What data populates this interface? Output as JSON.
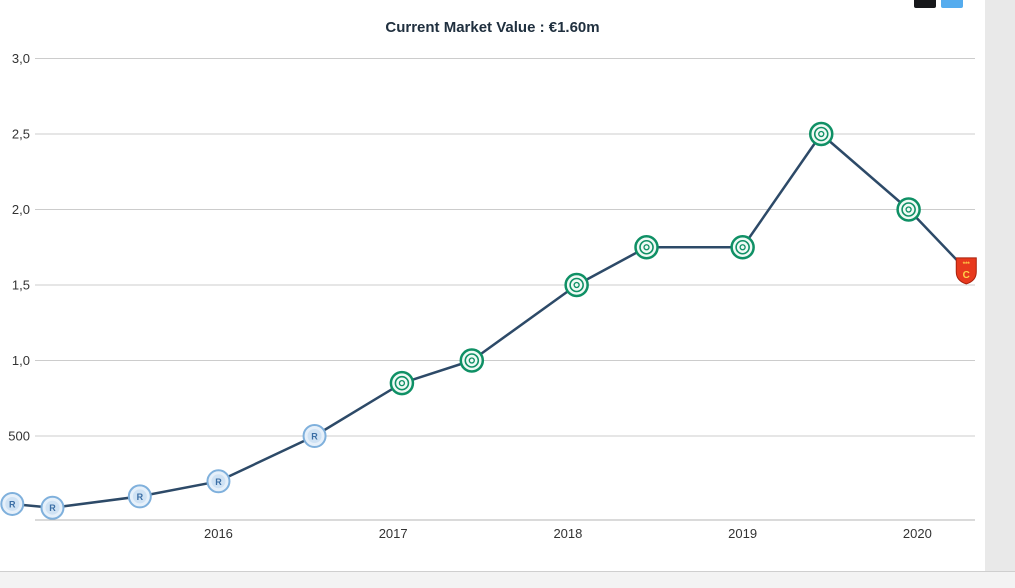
{
  "chart_data": {
    "type": "line",
    "title": "Current Market Value : €1.60m",
    "current_value": "€1.60m",
    "unit": "million €",
    "grid": true,
    "legend": "none",
    "line_color": "#2d4a68",
    "grid_color": "#cccccc",
    "axis_color": "#b5b5b5",
    "tick_color": "#333333",
    "x_range": [
      2014.95,
      2020.33
    ],
    "y_range": [
      0,
      3.1
    ],
    "y_ticks": [
      {
        "label": "3,0",
        "value": 3.0
      },
      {
        "label": "2,5",
        "value": 2.5
      },
      {
        "label": "2,0",
        "value": 2.0
      },
      {
        "label": "1,5",
        "value": 1.5
      },
      {
        "label": "1,0",
        "value": 1.0
      },
      {
        "label": "500",
        "value": 0.5
      }
    ],
    "x_ticks": [
      {
        "label": "2016",
        "value": 2016
      },
      {
        "label": "2017",
        "value": 2017
      },
      {
        "label": "2018",
        "value": 2018
      },
      {
        "label": "2019",
        "value": 2019
      },
      {
        "label": "2020",
        "value": 2020
      }
    ],
    "points": [
      {
        "x": 2014.82,
        "value": 0.05,
        "marker": "blue-crest"
      },
      {
        "x": 2015.05,
        "value": 0.025,
        "marker": "blue-crest"
      },
      {
        "x": 2015.55,
        "value": 0.1,
        "marker": "blue-crest"
      },
      {
        "x": 2016.0,
        "value": 0.2,
        "marker": "blue-crest"
      },
      {
        "x": 2016.55,
        "value": 0.5,
        "marker": "blue-crest"
      },
      {
        "x": 2017.05,
        "value": 0.85,
        "marker": "green-crest"
      },
      {
        "x": 2017.45,
        "value": 1.0,
        "marker": "green-crest"
      },
      {
        "x": 2018.05,
        "value": 1.5,
        "marker": "green-crest"
      },
      {
        "x": 2018.45,
        "value": 1.75,
        "marker": "green-crest"
      },
      {
        "x": 2019.0,
        "value": 1.75,
        "marker": "green-crest"
      },
      {
        "x": 2019.45,
        "value": 2.5,
        "marker": "green-crest"
      },
      {
        "x": 2019.95,
        "value": 2.0,
        "marker": "green-crest"
      },
      {
        "x": 2020.28,
        "value": 1.6,
        "marker": "red-shield"
      }
    ],
    "marker_colors": {
      "blue_crest_fill": "#e6f0fa",
      "blue_crest_ring": "#7fb0dc",
      "blue_crest_letter": "#3b6ea5",
      "green_crest_ring": "#0f9065",
      "green_crest_fill": "#f0faf5",
      "red_shield_fill": "#e8391d",
      "red_shield_accent": "#ffd24a"
    },
    "marker_letters": {
      "blue": "R",
      "red": "C",
      "red_top": "***"
    }
  },
  "share": {
    "x_icon": "X share button",
    "twitter_icon": "Twitter share button"
  }
}
